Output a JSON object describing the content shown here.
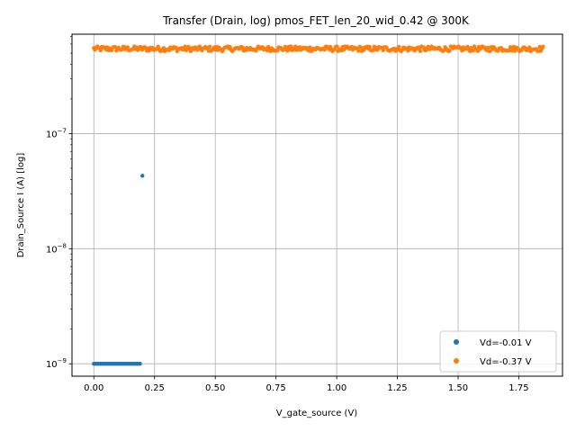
{
  "chart_data": {
    "type": "scatter",
    "title": "Transfer (Drain, log) pmos_FET_len_20_wid_0.42 @ 300K",
    "xlabel": "V_gate_source (V)",
    "ylabel": "Drain_Source I (A) [log]",
    "xlim": [
      -0.09,
      1.93
    ],
    "ylim": [
      7.8e-10,
      7.3e-07
    ],
    "yscale": "log",
    "grid": true,
    "legend_position": "lower right",
    "x_ticks": [
      {
        "value": 0.0,
        "label": "0.00"
      },
      {
        "value": 0.25,
        "label": "0.25"
      },
      {
        "value": 0.5,
        "label": "0.50"
      },
      {
        "value": 0.75,
        "label": "0.75"
      },
      {
        "value": 1.0,
        "label": "1.00"
      },
      {
        "value": 1.25,
        "label": "1.25"
      },
      {
        "value": 1.5,
        "label": "1.50"
      },
      {
        "value": 1.75,
        "label": "1.75"
      }
    ],
    "y_ticks": [
      {
        "value": 1e-09,
        "mantissa": "10",
        "exponent": "−9"
      },
      {
        "value": 1e-08,
        "mantissa": "10",
        "exponent": "−8"
      },
      {
        "value": 1e-07,
        "mantissa": "10",
        "exponent": "−7"
      }
    ],
    "series": [
      {
        "name": "Vd=-0.01 V",
        "color": "#1f77b4",
        "x_start": 0.0,
        "x_end": 0.19,
        "n_points": 40,
        "y_value": 1e-09,
        "extra_points": [
          {
            "x": 0.2,
            "y": 4.3e-08
          }
        ]
      },
      {
        "name": "Vd=-0.37 V",
        "color": "#ff7f0e",
        "x_start": 0.0,
        "x_end": 1.85,
        "n_points": 400,
        "y_value": 5.4e-07,
        "jitter": [
          -0.04,
          0.06
        ]
      }
    ]
  }
}
